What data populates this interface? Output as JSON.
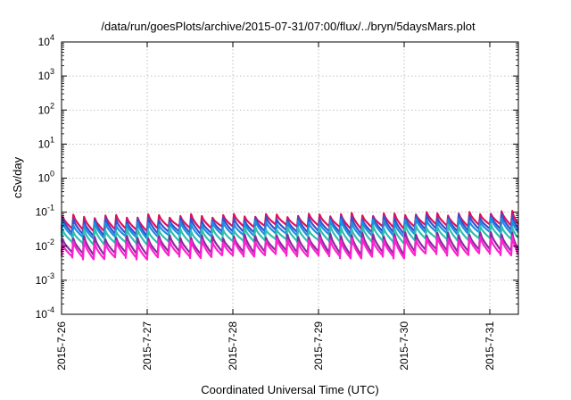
{
  "chart_data": {
    "type": "line",
    "title": "/data/run/goesPlots/archive/2015-07-31/07:00/flux/../bryn/5daysMars.plot",
    "xlabel": "Coordinated Universal Time (UTC)",
    "ylabel": "cSv/day",
    "yscale": "log",
    "ylim": [
      0.0001,
      10000
    ],
    "y_ticks": [
      {
        "base": "10",
        "exp": "-4",
        "value": 0.0001
      },
      {
        "base": "10",
        "exp": "-3",
        "value": 0.001
      },
      {
        "base": "10",
        "exp": "-2",
        "value": 0.01
      },
      {
        "base": "10",
        "exp": "-1",
        "value": 0.1
      },
      {
        "base": "10",
        "exp": "0",
        "value": 1
      },
      {
        "base": "10",
        "exp": "1",
        "value": 10
      },
      {
        "base": "10",
        "exp": "2",
        "value": 100
      },
      {
        "base": "10",
        "exp": "3",
        "value": 1000
      },
      {
        "base": "10",
        "exp": "4",
        "value": 10000
      }
    ],
    "xlim": [
      "2015-07-26 00:00",
      "2015-07-31 08:00"
    ],
    "x_ticks": [
      "2015-7-26",
      "2015-7-27",
      "2015-7-28",
      "2015-7-29",
      "2015-7-30",
      "2015-7-31"
    ],
    "grid": true,
    "sawtooth_period_hours": 3,
    "series": [
      {
        "color": "#e0105a",
        "trough": [
          0.03,
          0.035,
          0.04,
          0.035,
          0.04,
          0.045
        ],
        "peak": [
          0.075,
          0.078,
          0.08,
          0.085,
          0.09,
          0.1
        ]
      },
      {
        "color": "#3a4ecf",
        "trough": [
          0.022,
          0.025,
          0.028,
          0.025,
          0.03,
          0.033
        ],
        "peak": [
          0.06,
          0.062,
          0.065,
          0.07,
          0.075,
          0.08
        ]
      },
      {
        "color": "#1a8fe0",
        "trough": [
          0.018,
          0.02,
          0.022,
          0.02,
          0.024,
          0.026
        ],
        "peak": [
          0.045,
          0.047,
          0.05,
          0.055,
          0.058,
          0.062
        ]
      },
      {
        "color": "#2fbfb0",
        "trough": [
          0.012,
          0.013,
          0.015,
          0.013,
          0.016,
          0.018
        ],
        "peak": [
          0.03,
          0.031,
          0.033,
          0.036,
          0.038,
          0.04
        ]
      },
      {
        "color": "#8a2b9e",
        "trough": [
          0.006,
          0.0065,
          0.007,
          0.006,
          0.0075,
          0.008
        ],
        "peak": [
          0.018,
          0.019,
          0.02,
          0.022,
          0.023,
          0.025
        ]
      },
      {
        "color": "#ff20d0",
        "trough": [
          0.0045,
          0.005,
          0.0055,
          0.0048,
          0.0058,
          0.006
        ],
        "peak": [
          0.013,
          0.014,
          0.015,
          0.016,
          0.017,
          0.018
        ]
      }
    ]
  }
}
